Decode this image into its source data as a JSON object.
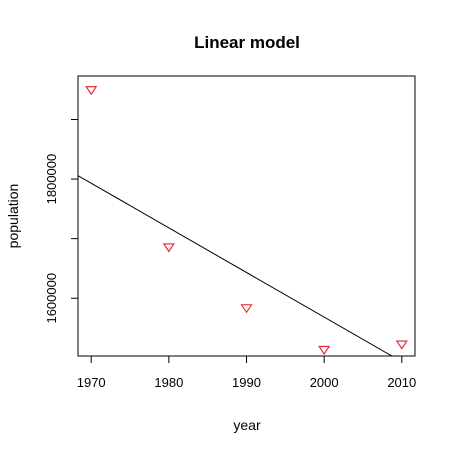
{
  "chart_data": {
    "type": "scatter",
    "title": "Linear model",
    "xlabel": "year",
    "ylabel": "population",
    "xlim": [
      1968.3,
      2011.7
    ],
    "ylim": [
      1503000,
      1973000
    ],
    "x_ticks": [
      1970,
      1980,
      1990,
      2000,
      2010
    ],
    "y_ticks": [
      1600000,
      1700000,
      1800000,
      1900000
    ],
    "y_tick_labels": [
      "1600000",
      "",
      "1800000",
      ""
    ],
    "grid": false,
    "marker": "triangle-down",
    "marker_color": "#e4202a",
    "line_color": "#000000",
    "series": [
      {
        "x": [
          1970,
          1980,
          1990,
          2000,
          2010
        ],
        "y": [
          1950000,
          1686000,
          1584000,
          1514000,
          1523000
        ]
      }
    ],
    "fit_line": {
      "intercept": 16548300,
      "slope": -7490
    }
  }
}
